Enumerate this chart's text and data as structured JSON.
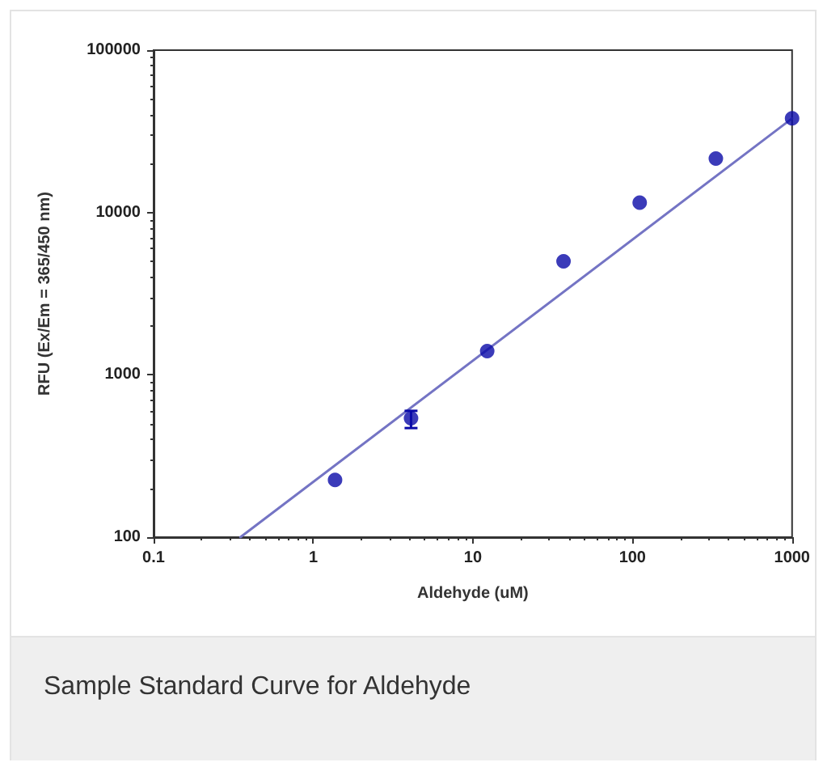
{
  "chart_data": {
    "type": "scatter",
    "xlabel": "Aldehyde (uM)",
    "ylabel": "RFU (Ex/Em = 365/450 nm)",
    "annotations": [
      "Sample Standard Curve for Aldehyde"
    ],
    "log": "xy",
    "grid": false,
    "marker": "circle",
    "xlim": [
      0.1,
      1000
    ],
    "xticks": [
      0.1,
      1,
      10,
      100,
      1000
    ],
    "ylim": [
      100,
      100000
    ],
    "yticks": [
      100,
      1000,
      10000,
      100000
    ],
    "series": [
      {
        "color": "#0a0aa8",
        "x": [
          1.37,
          4.1,
          12.3,
          37,
          111,
          333,
          1000
        ],
        "values": [
          225,
          540,
          1400,
          5000,
          11500,
          21500,
          38000
        ],
        "errors": [
          null,
          [
            470,
            600
          ],
          null,
          null,
          null,
          null,
          null
        ]
      },
      {
        "type": "line",
        "color": "#7474c4",
        "marker": "none",
        "line_style": "solid",
        "x": [
          0.35,
          1000
        ],
        "values": [
          100,
          38000
        ]
      }
    ]
  }
}
